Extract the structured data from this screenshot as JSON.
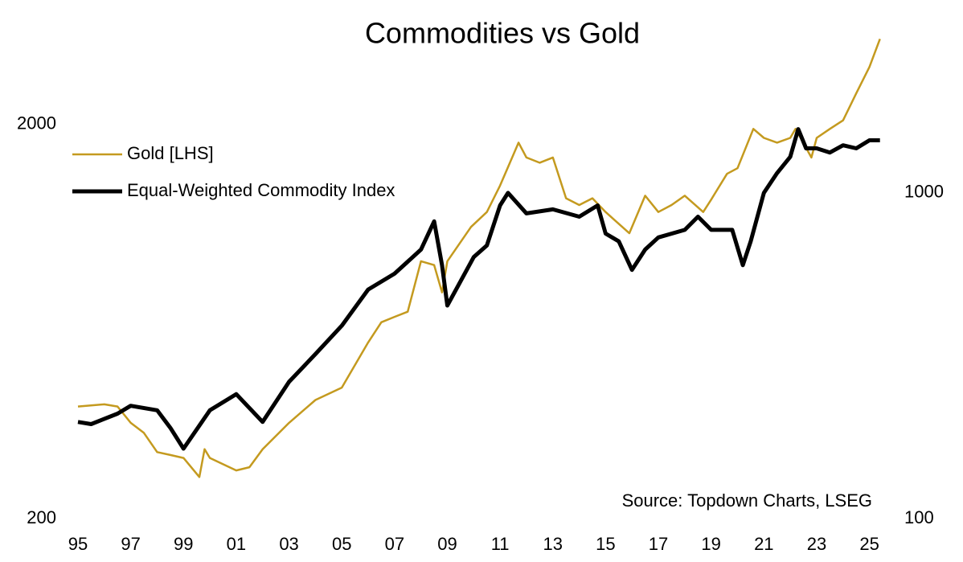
{
  "chart_data": {
    "type": "line",
    "title": "Commodities vs Gold",
    "annotation": "Source: Topdown Charts, LSEG",
    "xlim": [
      1995,
      2025.5
    ],
    "xticks": [
      {
        "value": 1995,
        "label": "95"
      },
      {
        "value": 1997,
        "label": "97"
      },
      {
        "value": 1999,
        "label": "99"
      },
      {
        "value": 2001,
        "label": "01"
      },
      {
        "value": 2003,
        "label": "03"
      },
      {
        "value": 2005,
        "label": "05"
      },
      {
        "value": 2007,
        "label": "07"
      },
      {
        "value": 2009,
        "label": "09"
      },
      {
        "value": 2011,
        "label": "11"
      },
      {
        "value": 2013,
        "label": "13"
      },
      {
        "value": 2015,
        "label": "15"
      },
      {
        "value": 2017,
        "label": "17"
      },
      {
        "value": 2019,
        "label": "19"
      },
      {
        "value": 2021,
        "label": "21"
      },
      {
        "value": 2023,
        "label": "23"
      },
      {
        "value": 2025,
        "label": "25"
      }
    ],
    "ylim": [
      200,
      3400
    ],
    "yticks": [
      200,
      2000
    ],
    "log_y": true,
    "y2lim": [
      100,
      3080
    ],
    "y2ticks": [
      100,
      1000
    ],
    "log_y2": true,
    "grid": false,
    "legend": "upper left",
    "series": [
      {
        "name": "Gold [LHS]",
        "color": "#c49a1f",
        "axis": "y",
        "width": 2.5,
        "x": [
          1995,
          1996,
          1996.5,
          1997,
          1997.5,
          1998,
          1998.5,
          1999,
          1999.6,
          1999.8,
          2000,
          2001,
          2001.5,
          2002,
          2003,
          2004,
          2005,
          2006,
          2006.5,
          2007,
          2007.5,
          2008,
          2008.5,
          2008.8,
          2009,
          2009.9,
          2010.5,
          2011,
          2011.7,
          2012,
          2012.5,
          2013,
          2013.5,
          2014,
          2014.5,
          2015,
          2015.9,
          2016.5,
          2017,
          2017.5,
          2018,
          2018.7,
          2019,
          2019.6,
          2020,
          2020.6,
          2021,
          2021.5,
          2022,
          2022.2,
          2022.8,
          2023,
          2023.5,
          2024,
          2024.5,
          2025,
          2025.4
        ],
        "values": [
          385,
          390,
          385,
          350,
          330,
          295,
          290,
          285,
          255,
          300,
          285,
          265,
          270,
          300,
          350,
          400,
          430,
          560,
          630,
          650,
          670,
          900,
          880,
          750,
          900,
          1100,
          1200,
          1400,
          1800,
          1650,
          1600,
          1650,
          1300,
          1250,
          1300,
          1200,
          1060,
          1320,
          1200,
          1250,
          1320,
          1200,
          1290,
          1500,
          1550,
          1950,
          1850,
          1800,
          1850,
          1950,
          1650,
          1850,
          1950,
          2050,
          2400,
          2800,
          3300
        ]
      },
      {
        "name": "Equal-Weighted Commodity Index",
        "color": "#000000",
        "axis": "y2",
        "width": 5,
        "x": [
          1995,
          1995.5,
          1996.5,
          1997,
          1998,
          1998.5,
          1999,
          2000,
          2001,
          2002,
          2003,
          2004,
          2005,
          2006,
          2007,
          2008,
          2008.5,
          2008.8,
          2009,
          2009.5,
          2010,
          2010.5,
          2011,
          2011.3,
          2012,
          2013,
          2014,
          2014.7,
          2015,
          2015.5,
          2016,
          2016.5,
          2017,
          2018,
          2018.5,
          2019,
          2019.8,
          2020.2,
          2020.5,
          2021,
          2021.5,
          2022,
          2022.3,
          2022.6,
          2023,
          2023.5,
          2024,
          2024.5,
          2025,
          2025.4
        ],
        "values": [
          198,
          195,
          210,
          222,
          215,
          190,
          164,
          215,
          241,
          198,
          263,
          320,
          391,
          505,
          565,
          670,
          818,
          600,
          451,
          535,
          635,
          690,
          915,
          1000,
          865,
          890,
          845,
          915,
          750,
          710,
          580,
          670,
          730,
          770,
          845,
          770,
          770,
          600,
          710,
          1000,
          1150,
          1290,
          1570,
          1370,
          1370,
          1330,
          1400,
          1370,
          1450,
          1450
        ]
      }
    ]
  }
}
